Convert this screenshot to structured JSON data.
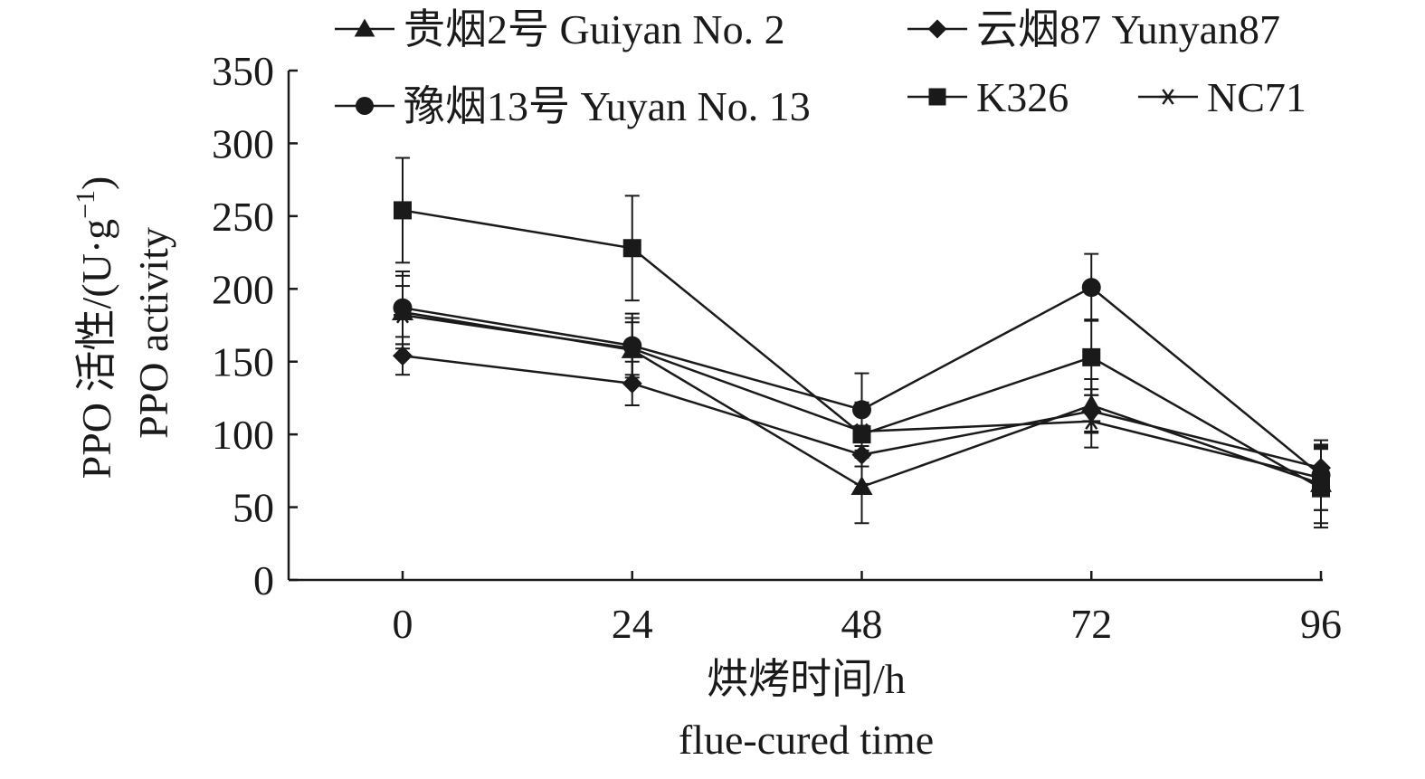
{
  "chart_data": {
    "type": "line",
    "x": [
      0,
      24,
      48,
      72,
      96
    ],
    "xlabel": "烘烤时间/h",
    "xlabel_en": "flue-cured time",
    "ylabel": "PPO 活性/(U·g",
    "ylabel_sup": "−1",
    "ylabel_close": ")",
    "ylabel_en": "PPO activity",
    "ylim": [
      0,
      350
    ],
    "yticks": [
      0,
      50,
      100,
      150,
      200,
      250,
      300,
      350
    ],
    "grid": false,
    "legend_position": "top",
    "line_color": "#1a1a1a",
    "series": [
      {
        "name": "贵烟2号 Guiyan No. 2",
        "marker": "triangle",
        "values": [
          184,
          158,
          64,
          120,
          66
        ],
        "error": [
          25,
          22,
          25,
          18,
          27
        ]
      },
      {
        "name": "云烟87 Yunyan87",
        "marker": "diamond",
        "values": [
          154,
          135,
          86,
          116,
          77
        ],
        "error": [
          13,
          15,
          20,
          15,
          14
        ]
      },
      {
        "name": "豫烟13号 Yuyan No. 13",
        "marker": "circle",
        "values": [
          187,
          161,
          117,
          201,
          72
        ],
        "error": [
          25,
          22,
          25,
          23,
          24
        ]
      },
      {
        "name": "K326",
        "marker": "square",
        "values": [
          254,
          228,
          100,
          153,
          63
        ],
        "error": [
          36,
          36,
          22,
          26,
          27
        ]
      },
      {
        "name": "NC71",
        "marker": "asterisk",
        "values": [
          182,
          159,
          102,
          109,
          70
        ],
        "error": [
          20,
          18,
          18,
          18,
          22
        ]
      }
    ]
  }
}
